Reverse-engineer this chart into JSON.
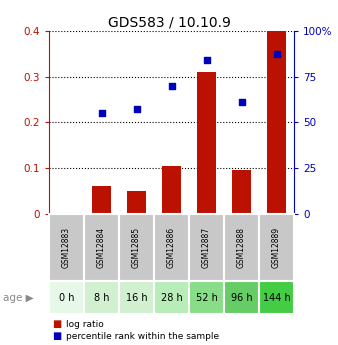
{
  "title": "GDS583 / 10.10.9",
  "samples": [
    "GSM12883",
    "GSM12884",
    "GSM12885",
    "GSM12886",
    "GSM12887",
    "GSM12888",
    "GSM12889"
  ],
  "ages": [
    "0 h",
    "8 h",
    "16 h",
    "28 h",
    "52 h",
    "96 h",
    "144 h"
  ],
  "log_ratio": [
    0.0,
    0.06,
    0.05,
    0.105,
    0.31,
    0.095,
    0.4
  ],
  "percentile_rank_pct": [
    null,
    55,
    57.5,
    70,
    84,
    61,
    87.5
  ],
  "ylim_left": [
    0,
    0.4
  ],
  "ylim_right": [
    0,
    100
  ],
  "yticks_left": [
    0,
    0.1,
    0.2,
    0.3,
    0.4
  ],
  "yticks_right": [
    0,
    25,
    50,
    75,
    100
  ],
  "ytick_labels_left": [
    "0",
    "0.1",
    "0.2",
    "0.3",
    "0.4"
  ],
  "ytick_labels_right": [
    "0",
    "25",
    "50",
    "75",
    "100%"
  ],
  "bar_color": "#bb1100",
  "scatter_color": "#0000bb",
  "sample_bg_color": "#c8c8c8",
  "age_colors": [
    "#e8f8e8",
    "#d0f0d0",
    "#d0f0d0",
    "#b8ecb8",
    "#88dd88",
    "#66cc66",
    "#44cc44"
  ],
  "legend_log_ratio_color": "#bb1100",
  "legend_percentile_color": "#0000bb"
}
